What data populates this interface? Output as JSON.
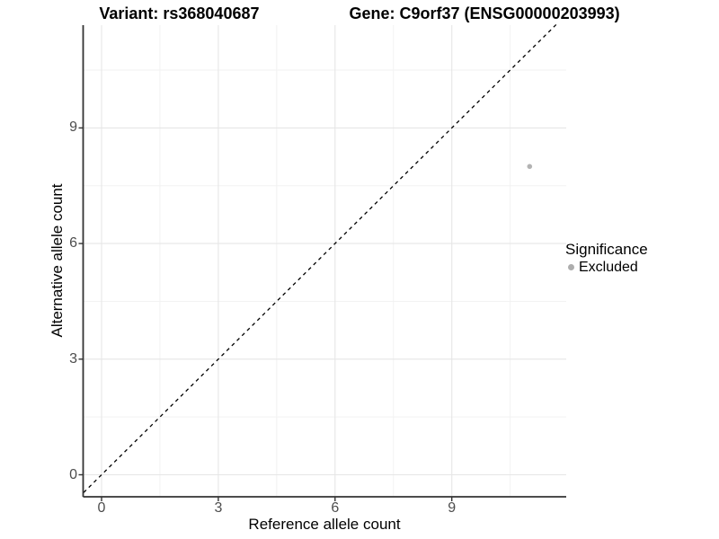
{
  "titles": {
    "left": "Variant: rs368040687",
    "right": "Gene: C9orf37 (ENSG00000203993)"
  },
  "axes": {
    "x_label": "Reference allele count",
    "y_label": "Alternative allele count"
  },
  "legend": {
    "title": "Significance",
    "items": [
      {
        "label": "Excluded",
        "color": "#adadad"
      }
    ]
  },
  "colors": {
    "background": "#ffffff",
    "grid_major": "#e6e6e6",
    "grid_minor": "#f2f2f2",
    "axis_line": "#333333",
    "tick_label": "#4d4d4d",
    "point": "#b3b3b3",
    "reference_line": "#000000"
  },
  "chart_data": {
    "type": "scatter",
    "title": "Variant: rs368040687    Gene: C9orf37 (ENSG00000203993)",
    "xlabel": "Reference allele count",
    "ylabel": "Alternative allele count",
    "x_ticks": [
      0,
      3,
      6,
      9
    ],
    "y_ticks": [
      0,
      3,
      6,
      9
    ],
    "x_minor_ticks": [
      1.5,
      4.5,
      7.5,
      10.5
    ],
    "y_minor_ticks": [
      1.5,
      4.5,
      7.5,
      10.5
    ],
    "xlim": [
      -0.46,
      11.94
    ],
    "ylim": [
      -0.56,
      11.68
    ],
    "grid": true,
    "legend_position": "right",
    "series": [
      {
        "name": "Excluded",
        "points": [
          {
            "x": 11,
            "y": 8
          }
        ],
        "color": "#b3b3b3"
      }
    ],
    "reference_line": {
      "kind": "identity y=x",
      "style": "dashed",
      "color": "#000000"
    }
  }
}
